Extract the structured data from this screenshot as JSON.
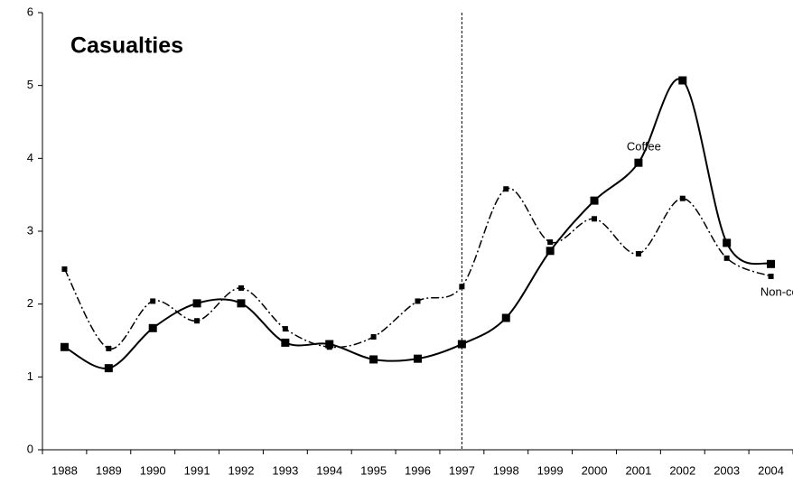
{
  "chart_data": {
    "type": "line",
    "title": "Casualties",
    "categories": [
      "1988",
      "1989",
      "1990",
      "1991",
      "1992",
      "1993",
      "1994",
      "1995",
      "1996",
      "1997",
      "1998",
      "1999",
      "2000",
      "2001",
      "2002",
      "2003",
      "2004"
    ],
    "series": [
      {
        "name": "Coffee",
        "color": "#000000",
        "values": [
          1.41,
          1.12,
          1.67,
          2.01,
          2.01,
          1.47,
          1.45,
          1.24,
          1.25,
          1.45,
          1.81,
          2.73,
          3.42,
          3.94,
          5.07,
          2.84,
          2.55
        ]
      },
      {
        "name": "Non-coffee",
        "color": "#000000",
        "values": [
          2.48,
          1.39,
          2.04,
          1.77,
          2.22,
          1.66,
          1.41,
          1.55,
          2.04,
          2.24,
          3.58,
          2.85,
          3.17,
          2.69,
          3.45,
          2.63,
          2.38
        ]
      }
    ],
    "ylim": [
      0,
      6
    ],
    "yticks": [
      0,
      1,
      2,
      3,
      4,
      5,
      6
    ],
    "grid": false,
    "marker_line": "1997"
  }
}
